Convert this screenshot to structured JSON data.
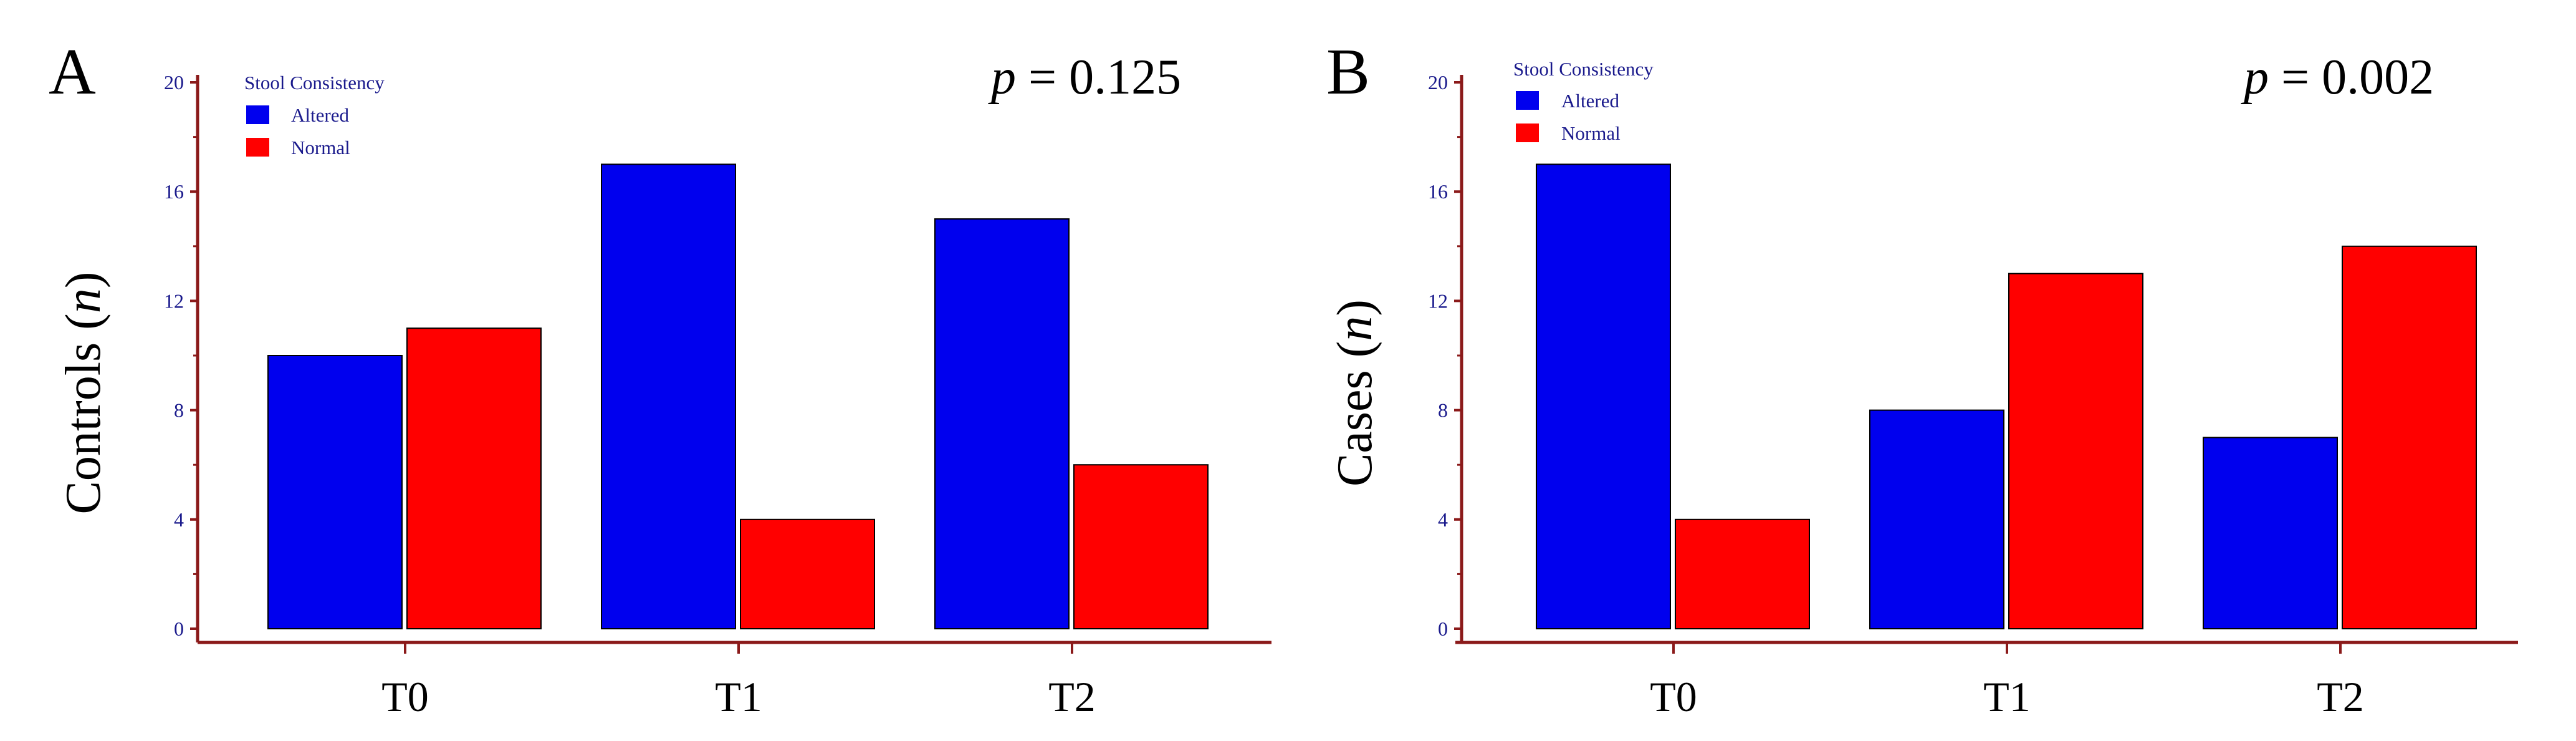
{
  "colors": {
    "altered": "#0000ee",
    "normal": "#ff0000",
    "axis": "#8b1a1a",
    "tick_label": "#1a1a8c",
    "legend_text": "#1a1a8c",
    "text": "#000000"
  },
  "chart_data": [
    {
      "type": "bar",
      "panel_label": "A",
      "pvalue_label": "p",
      "pvalue_text": " = 0.125",
      "ylabel_main": "Controls (",
      "ylabel_italic": "n",
      "ylabel_end": ")",
      "xlabel": "",
      "categories": [
        "T0",
        "T1",
        "T2"
      ],
      "series": [
        {
          "name": "Altered",
          "color_key": "altered",
          "values": [
            10,
            17,
            15
          ]
        },
        {
          "name": "Normal",
          "color_key": "normal",
          "values": [
            11,
            4,
            6
          ]
        }
      ],
      "legend_title": "Stool Consistency",
      "legend_position": "top-left",
      "ylim": [
        0,
        20
      ],
      "yticks": [
        0,
        4,
        8,
        12,
        16,
        20
      ],
      "grid": false
    },
    {
      "type": "bar",
      "panel_label": "B",
      "pvalue_label": "p",
      "pvalue_text": " = 0.002",
      "ylabel_main": "Cases (",
      "ylabel_italic": "n",
      "ylabel_end": ")",
      "xlabel": "",
      "categories": [
        "T0",
        "T1",
        "T2"
      ],
      "series": [
        {
          "name": "Altered",
          "color_key": "altered",
          "values": [
            17,
            8,
            7
          ]
        },
        {
          "name": "Normal",
          "color_key": "normal",
          "values": [
            4,
            13,
            14
          ]
        }
      ],
      "legend_title": "Stool Consistency",
      "legend_position": "top-left",
      "ylim": [
        0,
        20
      ],
      "yticks": [
        0,
        4,
        8,
        12,
        16,
        20
      ],
      "grid": false
    }
  ]
}
